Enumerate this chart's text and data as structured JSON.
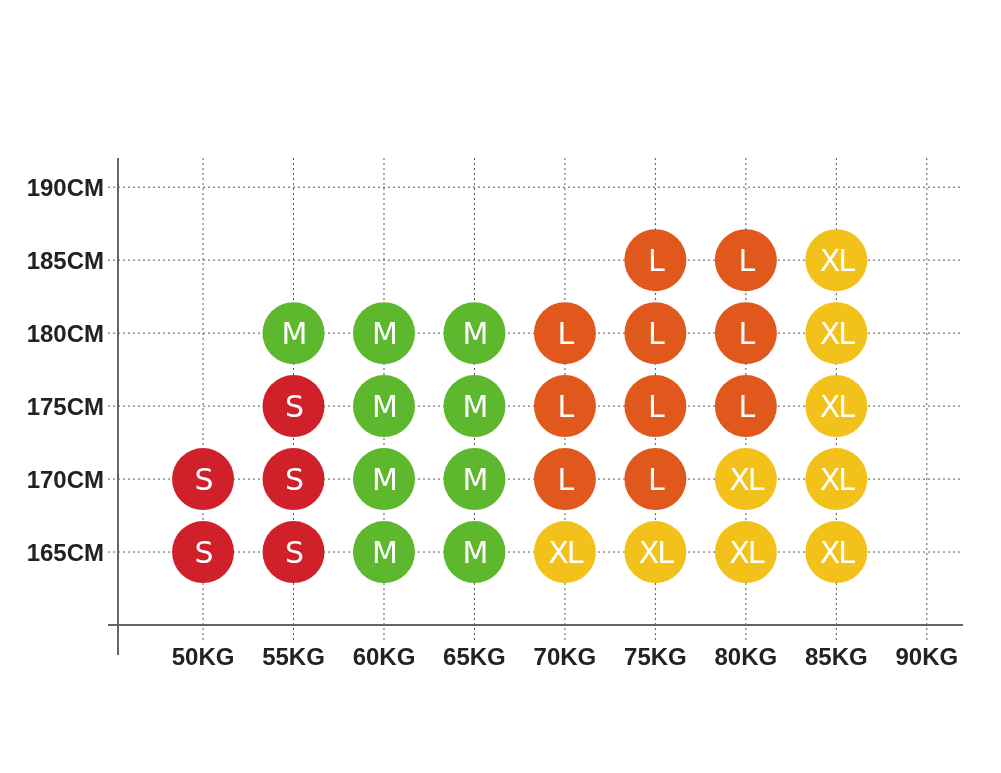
{
  "chart_data": {
    "type": "scatter",
    "xlim": [
      45.3,
      92
    ],
    "ylim": [
      160,
      192
    ],
    "xticks": [
      {
        "value": 50,
        "label": "50KG"
      },
      {
        "value": 55,
        "label": "55KG"
      },
      {
        "value": 60,
        "label": "60KG"
      },
      {
        "value": 65,
        "label": "65KG"
      },
      {
        "value": 70,
        "label": "70KG"
      },
      {
        "value": 75,
        "label": "75KG"
      },
      {
        "value": 80,
        "label": "80KG"
      },
      {
        "value": 85,
        "label": "85KG"
      },
      {
        "value": 90,
        "label": "90KG"
      }
    ],
    "yticks": [
      {
        "value": 165,
        "label": "165CM"
      },
      {
        "value": 170,
        "label": "170CM"
      },
      {
        "value": 175,
        "label": "175CM"
      },
      {
        "value": 180,
        "label": "180CM"
      },
      {
        "value": 185,
        "label": "185CM"
      },
      {
        "value": 190,
        "label": "190CM"
      }
    ],
    "grid": true,
    "marker": "circle",
    "series": [
      {
        "name": "S",
        "color": "#d0202a",
        "x": [
          50,
          50,
          55,
          55,
          55
        ],
        "values": [
          170,
          165,
          175,
          170,
          165
        ]
      },
      {
        "name": "M",
        "color": "#5db82e",
        "x": [
          55,
          60,
          60,
          60,
          60,
          65,
          65,
          65,
          65
        ],
        "values": [
          180,
          180,
          175,
          170,
          165,
          180,
          175,
          170,
          165
        ]
      },
      {
        "name": "L",
        "color": "#e0581c",
        "x": [
          70,
          70,
          70,
          75,
          75,
          75,
          75,
          80,
          80,
          80
        ],
        "values": [
          180,
          175,
          170,
          185,
          180,
          175,
          170,
          185,
          180,
          175
        ]
      },
      {
        "name": "XL",
        "color": "#f2c21b",
        "x": [
          70,
          75,
          80,
          80,
          85,
          85,
          85,
          85,
          85
        ],
        "values": [
          165,
          165,
          170,
          165,
          185,
          180,
          175,
          170,
          165
        ]
      }
    ]
  }
}
